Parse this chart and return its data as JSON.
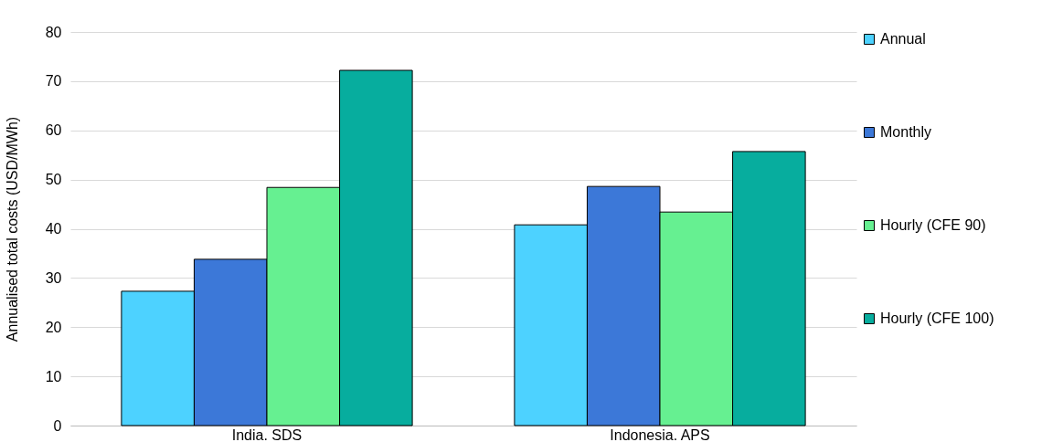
{
  "chart_data": {
    "type": "bar",
    "ylabel": "Annualised total costs (USD/MWh)",
    "categories": [
      "India. SDS",
      "Indonesia. APS"
    ],
    "series": [
      {
        "name": "Annual",
        "color": "#4dd2ff",
        "values": [
          27.3,
          40.8
        ]
      },
      {
        "name": "Monthly",
        "color": "#3c78d8",
        "values": [
          33.8,
          48.6
        ]
      },
      {
        "name": "Hourly (CFE 90)",
        "color": "#66f091",
        "values": [
          48.4,
          43.4
        ]
      },
      {
        "name": "Hourly (CFE 100)",
        "color": "#07ad9e",
        "values": [
          72.2,
          55.7
        ]
      }
    ],
    "ylim": [
      0,
      80
    ],
    "yticks": [
      0,
      10,
      20,
      30,
      40,
      50,
      60,
      70,
      80
    ],
    "grid": "y",
    "legend": "right"
  }
}
